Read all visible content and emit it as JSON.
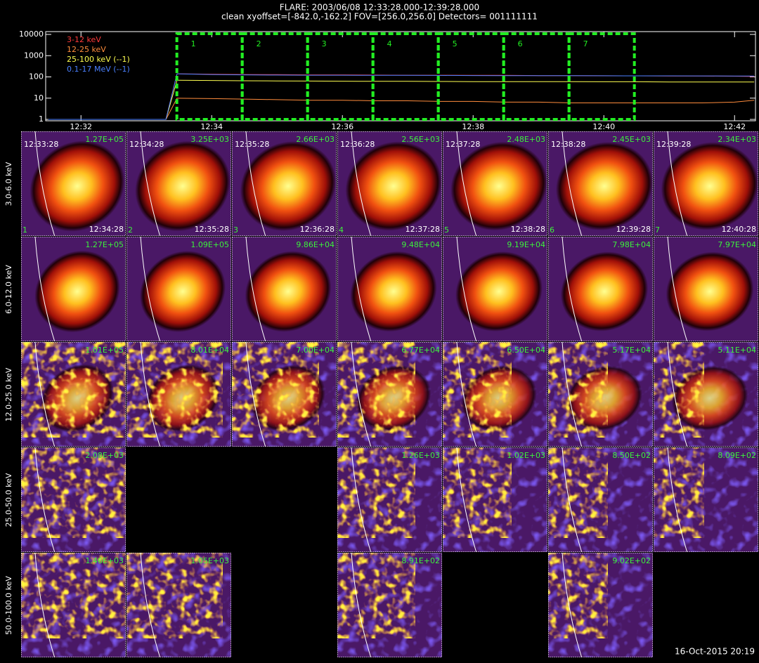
{
  "header": {
    "title": "FLARE: 2003/06/08 12:33:28.000-12:39:28.000",
    "subtitle": "clean   xyoffset=[-842.0,-162.2]   FOV=[256.0,256.0]   Detectors= 001111111"
  },
  "chart_data": {
    "type": "line",
    "ylog": true,
    "x": [
      31.5,
      32,
      32.5,
      33,
      33.3,
      33.47,
      34,
      34.5,
      35,
      35.5,
      36,
      36.5,
      37,
      37.5,
      38,
      38.5,
      39,
      39.5,
      40,
      40.5,
      41,
      41.5,
      42,
      42.3
    ],
    "xlim": [
      31.46,
      42.32
    ],
    "xticks": [
      {
        "value": 32,
        "label": "12:32"
      },
      {
        "value": 34,
        "label": "12:34"
      },
      {
        "value": 36,
        "label": "12:36"
      },
      {
        "value": 38,
        "label": "12:38"
      },
      {
        "value": 40,
        "label": "12:40"
      },
      {
        "value": 42,
        "label": "12:42"
      }
    ],
    "ylim": [
      1,
      10000
    ],
    "yticks": [
      1,
      10,
      100,
      1000,
      10000
    ],
    "series": [
      {
        "name": "3-12 keV",
        "color": "#ff3a3a",
        "values": [
          1,
          1,
          1,
          1,
          1,
          140,
          135,
          130,
          128,
          125,
          125,
          122,
          120,
          120,
          118,
          118,
          115,
          115,
          113,
          112,
          110,
          110,
          108,
          105
        ]
      },
      {
        "name": "12-25 keV",
        "color": "#ff8c3c",
        "values": [
          1,
          1,
          1,
          1,
          1,
          10,
          9.5,
          9,
          8.5,
          8,
          8,
          7.5,
          7.5,
          7,
          7,
          6.5,
          6.5,
          6,
          6,
          6,
          6,
          6,
          6.5,
          8
        ]
      },
      {
        "name": "25-100 keV (--1)",
        "color": "#ffff50",
        "values": [
          1,
          1,
          1,
          1,
          1,
          70,
          68,
          66,
          65,
          64,
          63,
          62,
          62,
          61,
          60,
          60,
          60,
          60,
          59,
          59,
          58,
          58,
          58,
          58
        ]
      },
      {
        "name": "0.1-17 MeV (--1)",
        "color": "#4a80ff",
        "values": [
          1,
          1,
          1,
          1,
          1,
          140,
          130,
          125,
          122,
          120,
          120,
          118,
          118,
          117,
          116,
          115,
          115,
          114,
          113,
          112,
          112,
          111,
          110,
          110
        ]
      }
    ],
    "interval_color": "#22ee22",
    "intervals": [
      {
        "label": "1",
        "start": 33.467,
        "end": 34.467
      },
      {
        "label": "2",
        "start": 34.467,
        "end": 35.467
      },
      {
        "label": "3",
        "start": 35.467,
        "end": 36.467
      },
      {
        "label": "4",
        "start": 36.467,
        "end": 37.467
      },
      {
        "label": "5",
        "start": 37.467,
        "end": 38.467
      },
      {
        "label": "6",
        "start": 38.467,
        "end": 39.467
      },
      {
        "label": "7",
        "start": 39.467,
        "end": 40.467
      }
    ]
  },
  "images": {
    "rows": [
      "3.0-6.0 keV",
      "6.0-12.0 keV",
      "12.0-25.0 keV",
      "25.0-50.0 keV",
      "50.0-100.0 keV"
    ],
    "start_times": [
      "12:33:28",
      "12:34:28",
      "12:35:28",
      "12:36:28",
      "12:37:28",
      "12:38:28",
      "12:39:28"
    ],
    "end_times": [
      "12:34:28",
      "12:35:28",
      "12:36:28",
      "12:37:28",
      "12:38:28",
      "12:39:28",
      "12:40:28"
    ],
    "indices": [
      "1",
      "2",
      "3",
      "4",
      "5",
      "6",
      "7"
    ],
    "peaks": [
      [
        "1.27E+05",
        "3.25E+03",
        "2.66E+03",
        "2.56E+03",
        "2.48E+03",
        "2.45E+03",
        "2.34E+03"
      ],
      [
        "1.27E+05",
        "1.09E+05",
        "9.86E+04",
        "9.48E+04",
        "9.19E+04",
        "7.98E+04",
        "7.97E+04"
      ],
      [
        "1.01E+05",
        "8.01E+04",
        "7.00E+04",
        "6.77E+04",
        "6.50E+04",
        "5.17E+04",
        "5.11E+04"
      ],
      [
        "2.08E+03",
        null,
        null,
        "1.26E+03",
        "1.02E+03",
        "8.50E+02",
        "8.09E+02"
      ],
      [
        "1.46E+03",
        "1.05E+03",
        null,
        "8.91E+02",
        null,
        "9.02E+02",
        null
      ]
    ]
  },
  "footer": "16-Oct-2015 20:19"
}
